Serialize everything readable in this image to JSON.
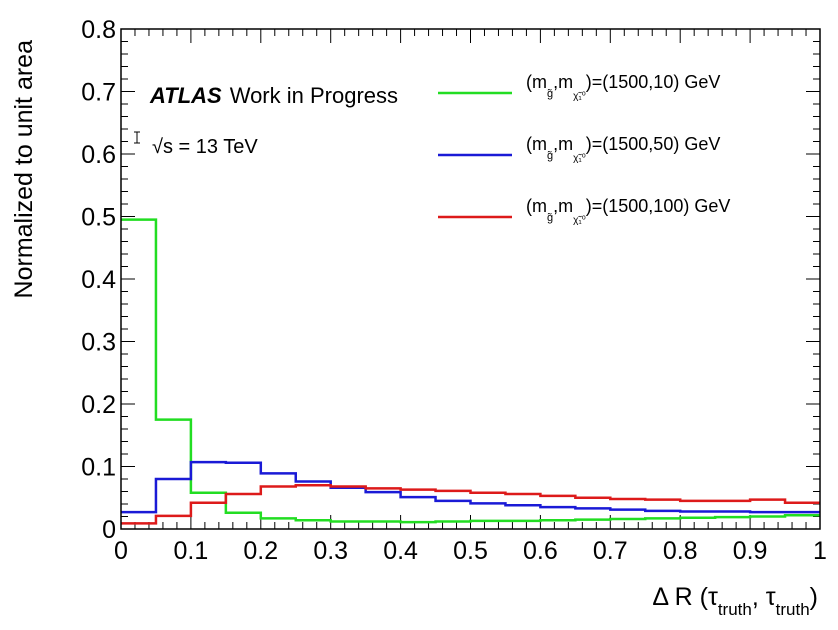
{
  "chart_data": {
    "type": "line",
    "style": "step-histogram",
    "ylabel": "Normalized to unit area",
    "xlabel": "Δ R (τtruth, τtruth)",
    "xlim": [
      0,
      1
    ],
    "ylim": [
      0,
      0.8
    ],
    "bin_edges": [
      0,
      0.05,
      0.1,
      0.15,
      0.2,
      0.25,
      0.3,
      0.35,
      0.4,
      0.45,
      0.5,
      0.55,
      0.6,
      0.65,
      0.7,
      0.75,
      0.8,
      0.85,
      0.9,
      0.95,
      1.0
    ],
    "x_ticks": [
      {
        "value": 0,
        "label": "0"
      },
      {
        "value": 0.1,
        "label": "0.1"
      },
      {
        "value": 0.2,
        "label": "0.2"
      },
      {
        "value": 0.3,
        "label": "0.3"
      },
      {
        "value": 0.4,
        "label": "0.4"
      },
      {
        "value": 0.5,
        "label": "0.5"
      },
      {
        "value": 0.6,
        "label": "0.6"
      },
      {
        "value": 0.7,
        "label": "0.7"
      },
      {
        "value": 0.8,
        "label": "0.8"
      },
      {
        "value": 0.9,
        "label": "0.9"
      },
      {
        "value": 1,
        "label": "1"
      }
    ],
    "y_ticks": [
      {
        "value": 0,
        "label": "0"
      },
      {
        "value": 0.1,
        "label": "0.1"
      },
      {
        "value": 0.2,
        "label": "0.2"
      },
      {
        "value": 0.3,
        "label": "0.3"
      },
      {
        "value": 0.4,
        "label": "0.4"
      },
      {
        "value": 0.5,
        "label": "0.5"
      },
      {
        "value": 0.6,
        "label": "0.6"
      },
      {
        "value": 0.7,
        "label": "0.7"
      },
      {
        "value": 0.8,
        "label": "0.8"
      }
    ],
    "annotations": {
      "atlas": "ATLAS",
      "status": "Work in Progress",
      "energy": "√s = 13 TeV"
    },
    "legend_position": "top-right",
    "series": [
      {
        "legend_prefix": "(m",
        "legend_sub1": "g̃",
        "legend_mid": ",m",
        "legend_sub2": "χ̃₁⁰",
        "legend_values": ")=(1500,10) GeV",
        "color": "#22dd22",
        "values": [
          0.495,
          0.175,
          0.058,
          0.026,
          0.017,
          0.014,
          0.012,
          0.012,
          0.011,
          0.012,
          0.013,
          0.013,
          0.014,
          0.015,
          0.016,
          0.017,
          0.018,
          0.019,
          0.02,
          0.022
        ]
      },
      {
        "legend_prefix": "(m",
        "legend_sub1": "g̃",
        "legend_mid": ",m",
        "legend_sub2": "χ̃₁⁰",
        "legend_values": ")=(1500,50) GeV",
        "color": "#1a1ad6",
        "values": [
          0.027,
          0.08,
          0.107,
          0.106,
          0.089,
          0.076,
          0.066,
          0.059,
          0.051,
          0.045,
          0.041,
          0.038,
          0.035,
          0.033,
          0.031,
          0.029,
          0.028,
          0.028,
          0.027,
          0.027
        ]
      },
      {
        "legend_prefix": "(m",
        "legend_sub1": "g̃",
        "legend_mid": ",m",
        "legend_sub2": "χ̃₁⁰",
        "legend_values": ")=(1500,100) GeV",
        "color": "#dd1a1a",
        "values": [
          0.009,
          0.021,
          0.042,
          0.056,
          0.068,
          0.07,
          0.068,
          0.065,
          0.063,
          0.061,
          0.058,
          0.056,
          0.053,
          0.05,
          0.048,
          0.047,
          0.045,
          0.045,
          0.047,
          0.042
        ]
      }
    ]
  }
}
